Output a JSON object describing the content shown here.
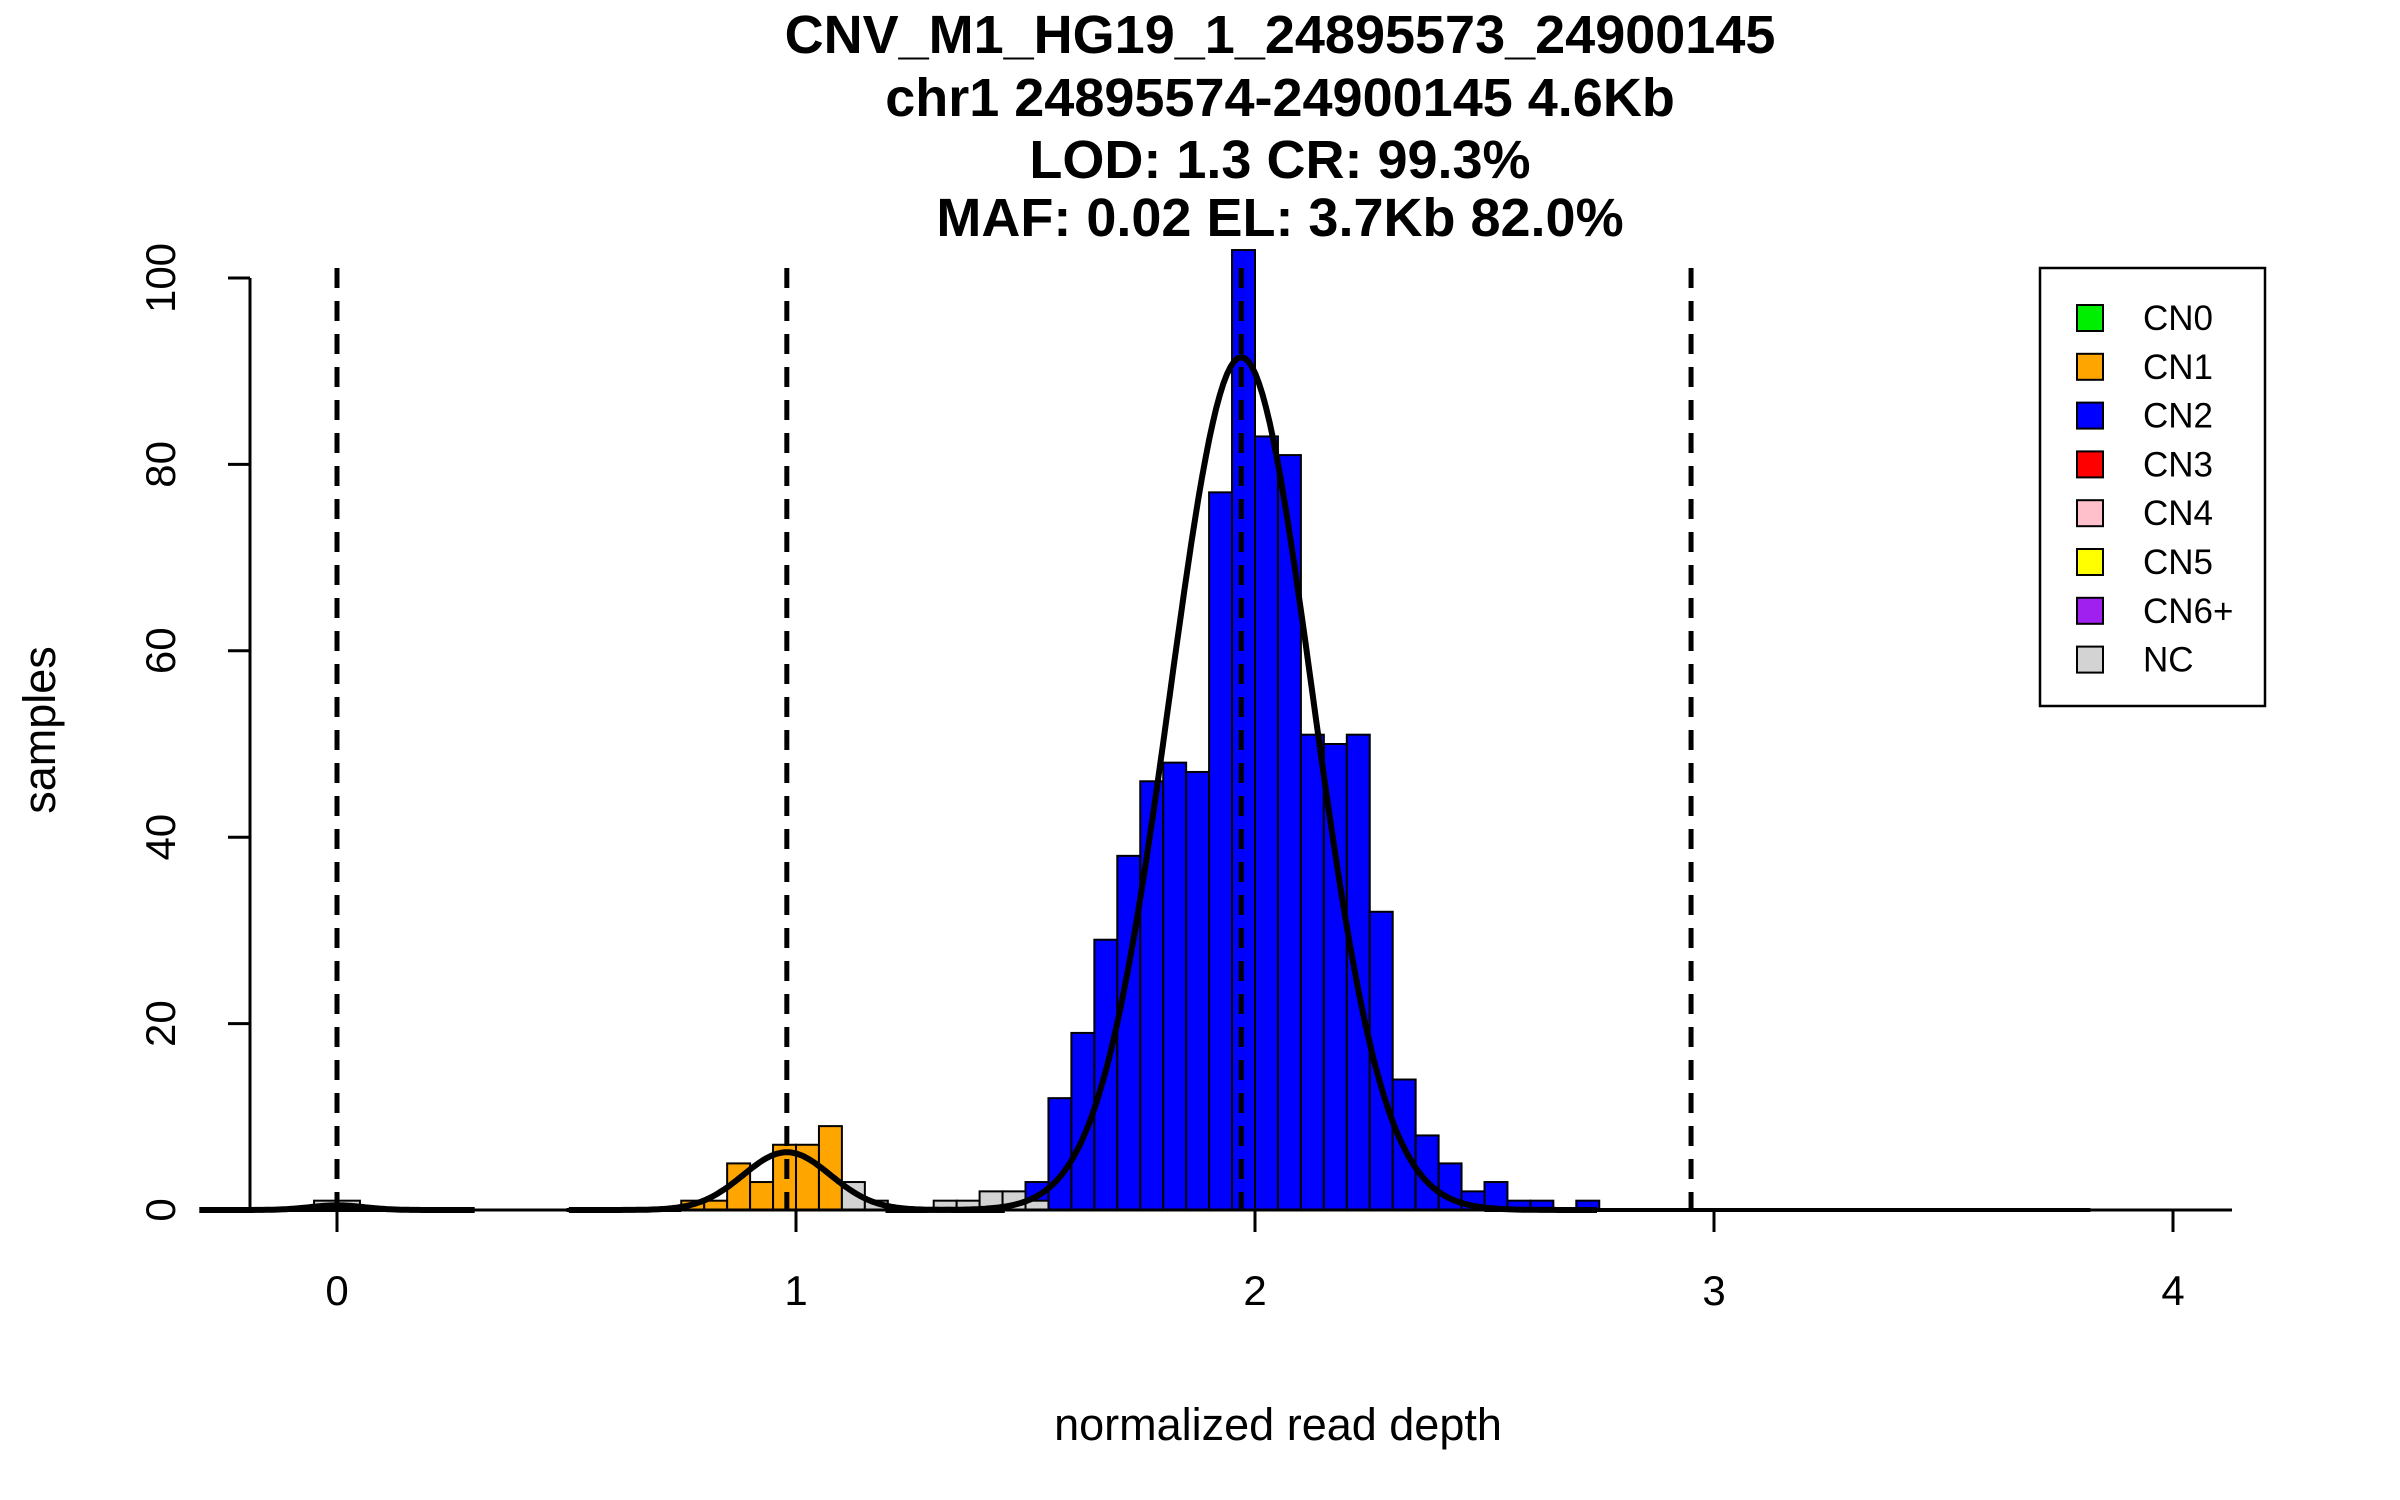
{
  "chart_data": {
    "type": "bar",
    "title": [
      "CNV_M1_HG19_1_24895573_24900145",
      "chr1 24895574-24900145 4.6Kb",
      "LOD: 1.3 CR: 99.3%",
      "MAF: 0.02 EL: 3.7Kb 82.0%"
    ],
    "xlabel": "normalized read depth",
    "ylabel": "samples",
    "xlim": [
      -0.19,
      4.12
    ],
    "ylim": [
      0,
      103
    ],
    "x_ticks": [
      "0",
      "1",
      "2",
      "3",
      "4"
    ],
    "y_ticks": [
      "0",
      "20",
      "40",
      "60",
      "80",
      "100"
    ],
    "bin_width": 0.05,
    "legend": {
      "position": "top-right",
      "entries": [
        {
          "label": "CN0",
          "color": "#00ee00"
        },
        {
          "label": "CN1",
          "color": "#ffa500"
        },
        {
          "label": "CN2",
          "color": "#0000ff"
        },
        {
          "label": "CN3",
          "color": "#ff0000"
        },
        {
          "label": "CN4",
          "color": "#ffc0cb"
        },
        {
          "label": "CN5",
          "color": "#ffff00"
        },
        {
          "label": "CN6+",
          "color": "#a020f0"
        },
        {
          "label": "NC",
          "color": "#d3d3d3"
        }
      ]
    },
    "dashed_lines_x": [
      0,
      0.98,
      1.97,
      2.95
    ],
    "series": [
      {
        "name": "CN1",
        "color": "#ffa500",
        "bins": [
          [
            0.75,
            1
          ],
          [
            0.8,
            1
          ],
          [
            0.85,
            5
          ],
          [
            0.9,
            3
          ],
          [
            0.95,
            7
          ],
          [
            1.0,
            7
          ],
          [
            1.05,
            9
          ]
        ]
      },
      {
        "name": "CN2",
        "color": "#0000ff",
        "bins": [
          [
            1.5,
            3
          ],
          [
            1.55,
            12
          ],
          [
            1.6,
            19
          ],
          [
            1.65,
            29
          ],
          [
            1.7,
            38
          ],
          [
            1.75,
            46
          ],
          [
            1.8,
            48
          ],
          [
            1.85,
            47
          ],
          [
            1.9,
            77
          ],
          [
            1.95,
            103
          ],
          [
            2.0,
            83
          ],
          [
            2.05,
            81
          ],
          [
            2.1,
            51
          ],
          [
            2.15,
            50
          ],
          [
            2.2,
            51
          ],
          [
            2.25,
            32
          ],
          [
            2.3,
            14
          ],
          [
            2.35,
            8
          ],
          [
            2.4,
            5
          ],
          [
            2.45,
            2
          ],
          [
            2.5,
            3
          ],
          [
            2.55,
            1
          ],
          [
            2.6,
            1
          ],
          [
            2.7,
            1
          ]
        ]
      },
      {
        "name": "NC",
        "color": "#d3d3d3",
        "bins": [
          [
            -0.05,
            1
          ],
          [
            0.0,
            1
          ],
          [
            1.1,
            3
          ],
          [
            1.15,
            1
          ],
          [
            1.3,
            1
          ],
          [
            1.35,
            1
          ],
          [
            1.4,
            2
          ],
          [
            1.45,
            2
          ],
          [
            1.5,
            1
          ]
        ]
      }
    ],
    "fit_curves": [
      {
        "amplitude": 6.2,
        "mean": 0.98,
        "sd": 0.095
      },
      {
        "amplitude": 91.5,
        "mean": 1.97,
        "sd": 0.155
      },
      {
        "amplitude": 0.5,
        "mean": 0.0,
        "sd": 0.06
      }
    ],
    "grid": false
  }
}
